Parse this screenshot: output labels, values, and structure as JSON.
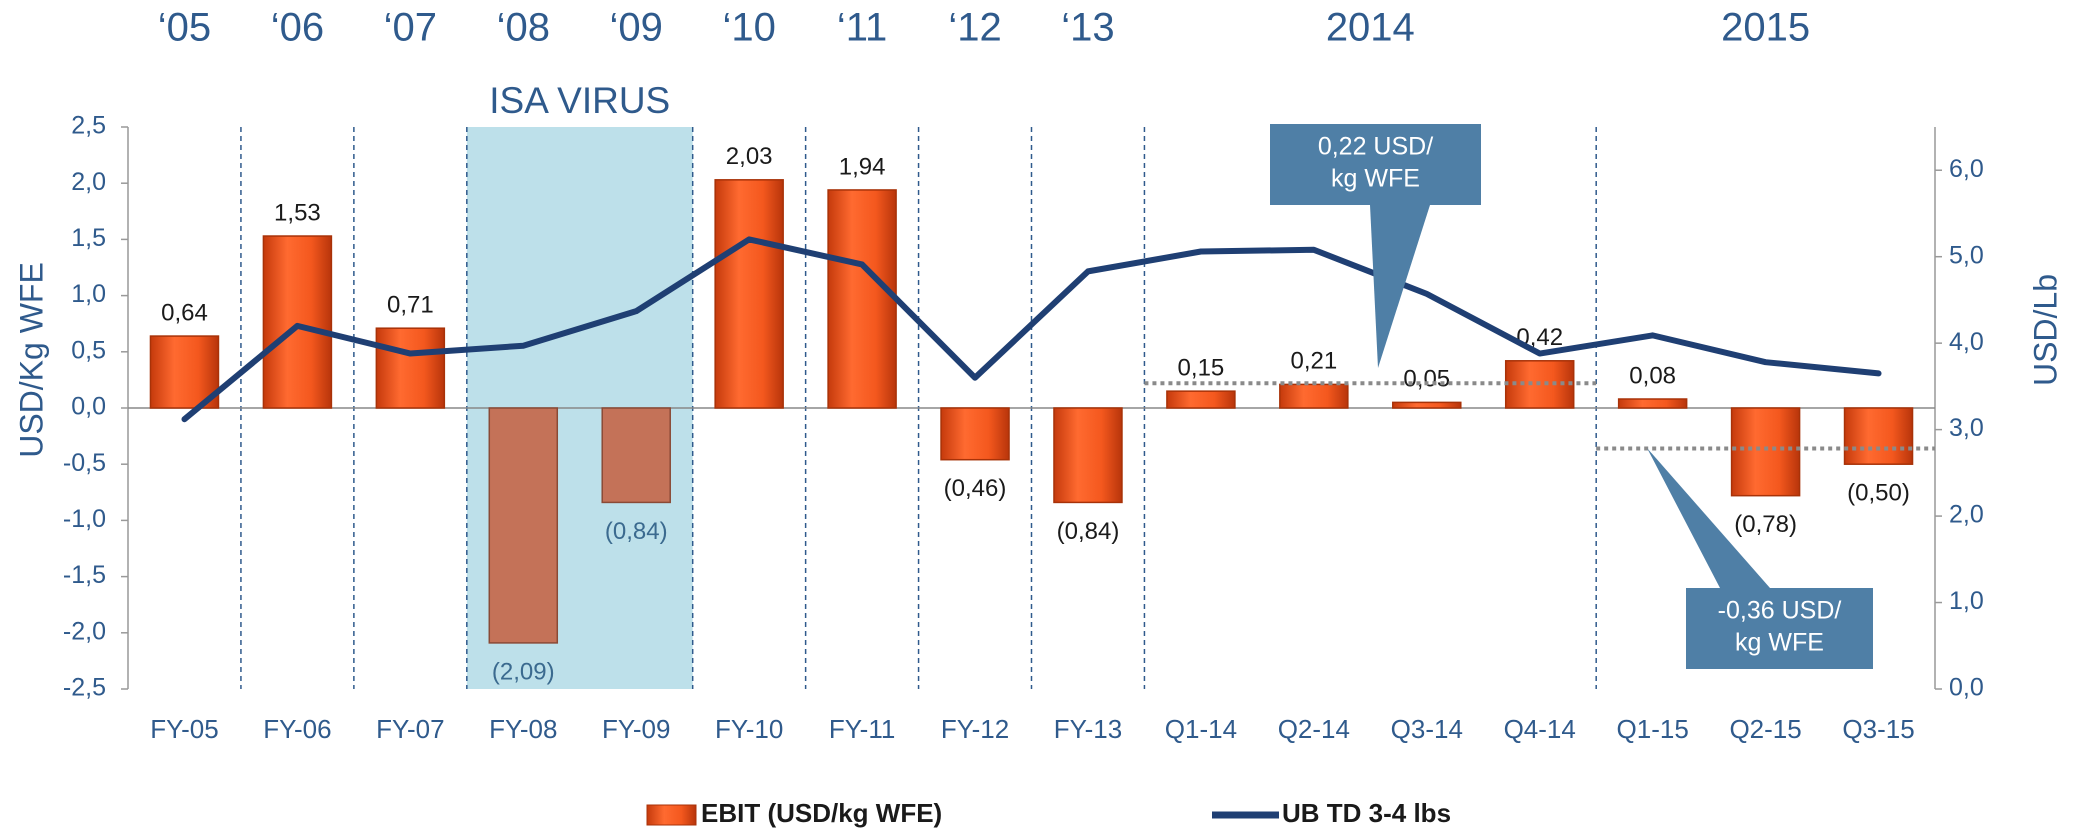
{
  "chart_data": {
    "type": "bar_line",
    "categories": [
      "FY-05",
      "FY-06",
      "FY-07",
      "FY-08",
      "FY-09",
      "FY-10",
      "FY-11",
      "FY-12",
      "FY-13",
      "Q1-14",
      "Q2-14",
      "Q3-14",
      "Q4-14",
      "Q1-15",
      "Q2-15",
      "Q3-15"
    ],
    "series": [
      {
        "name": "EBIT (USD/kg WFE)",
        "color": "#f4581e",
        "axis": "y",
        "values": [
          0.64,
          1.53,
          0.71,
          -2.09,
          -0.84,
          2.03,
          1.94,
          -0.46,
          -0.84,
          0.15,
          0.21,
          0.05,
          0.42,
          0.08,
          -0.78,
          -0.5
        ],
        "value_labels": [
          "0,64",
          "1,53",
          "0,71",
          "(2,09)",
          "(0,84)",
          "2,03",
          "1,94",
          "(0,46)",
          "(0,84)",
          "0,15",
          "0,21",
          "0,05",
          "0,42",
          "0,08",
          "(0,78)",
          "(0,50)"
        ]
      },
      {
        "name": "UB TD 3-4 lbs",
        "color": "#1f3f73",
        "axis": "y2",
        "values": [
          3.12,
          4.2,
          3.88,
          3.97,
          4.37,
          5.2,
          4.91,
          3.6,
          4.83,
          5.06,
          5.08,
          4.57,
          3.88,
          4.09,
          3.78,
          3.65
        ]
      }
    ],
    "y_label": "USD/Kg WFE",
    "y2_label": "USD/Lb",
    "ylim": [
      -2.5,
      2.5
    ],
    "yticks": [
      {
        "value": -2.5,
        "label": "-2,5"
      },
      {
        "value": -2.0,
        "label": "-2,0"
      },
      {
        "value": -1.5,
        "label": "-1,5"
      },
      {
        "value": -1.0,
        "label": "-1,0"
      },
      {
        "value": -0.5,
        "label": "-0,5"
      },
      {
        "value": 0,
        "label": "0,0"
      },
      {
        "value": 0.5,
        "label": "0,5"
      },
      {
        "value": 1.0,
        "label": "1,0"
      },
      {
        "value": 1.5,
        "label": "1,5"
      },
      {
        "value": 2.0,
        "label": "2,0"
      },
      {
        "value": 2.5,
        "label": "2,5"
      }
    ],
    "y2lim": [
      0,
      6.5
    ],
    "y2ticks": [
      {
        "value": 0,
        "label": "0,0"
      },
      {
        "value": 1,
        "label": "1,0"
      },
      {
        "value": 2,
        "label": "2,0"
      },
      {
        "value": 3,
        "label": "3,0"
      },
      {
        "value": 4,
        "label": "4,0"
      },
      {
        "value": 5,
        "label": "5,0"
      },
      {
        "value": 6,
        "label": "6,0"
      }
    ],
    "top_labels": [
      {
        "label": "‘05",
        "from": "FY-05",
        "to": "FY-05"
      },
      {
        "label": "‘06",
        "from": "FY-06",
        "to": "FY-06"
      },
      {
        "label": "‘07",
        "from": "FY-07",
        "to": "FY-07"
      },
      {
        "label": "‘08",
        "from": "FY-08",
        "to": "FY-08"
      },
      {
        "label": "‘09",
        "from": "FY-09",
        "to": "FY-09"
      },
      {
        "label": "‘10",
        "from": "FY-10",
        "to": "FY-10"
      },
      {
        "label": "‘11",
        "from": "FY-11",
        "to": "FY-11"
      },
      {
        "label": "‘12",
        "from": "FY-12",
        "to": "FY-12"
      },
      {
        "label": "‘13",
        "from": "FY-13",
        "to": "FY-13"
      },
      {
        "label": "2014",
        "from": "Q1-14",
        "to": "Q4-14"
      },
      {
        "label": "2015",
        "from": "Q1-15",
        "to": "Q3-15"
      }
    ],
    "highlight": {
      "label": "ISA VIRUS",
      "from": "FY-08",
      "to": "FY-09",
      "color": "#bde0ea",
      "bar_color": "#c47258"
    },
    "averages": [
      {
        "value": 0.22,
        "label": [
          "0,22 USD/",
          "kg WFE"
        ],
        "from": "Q1-14",
        "to": "Q4-14"
      },
      {
        "value": -0.36,
        "label": [
          "-0,36 USD/",
          "kg WFE"
        ],
        "from": "Q1-15",
        "to": "Q3-15"
      }
    ],
    "legend": "bottom"
  }
}
